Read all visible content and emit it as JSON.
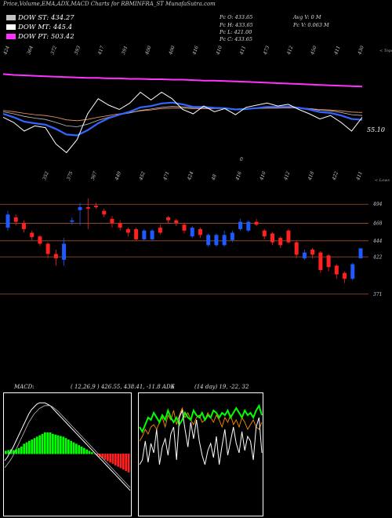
{
  "title": "Price,Volume,EMA,ADX,MACD Charts for RBMINFRA_ST MunafaSutra.com",
  "legend": [
    {
      "label": "DOW ST: 434.27",
      "color": "#c0c0c0"
    },
    {
      "label": "DOW MT: 445.4",
      "color": "#ffffff"
    },
    {
      "label": "DOW PT: 503.42",
      "color": "#ff33ff"
    }
  ],
  "info": {
    "pc_o": "Pc  O: 433.65",
    "pc_h": "Pc  H: 433.65",
    "pc_l": "Pc  L: 421.00",
    "pc_c": "Pc  C: 433.65",
    "avg_v": "Avg V: 0  M",
    "pc_v": "Pc  V: 0.063 M"
  },
  "colors": {
    "up": "#1e5aff",
    "down": "#ff2020",
    "grid": "#a0522d",
    "ema_long": "#ff33ff",
    "ema_blue": "#3366ff",
    "macd_hist": "#00ff00",
    "adx_green": "#00ff00",
    "adx_orange": "#ff8c00"
  },
  "chart_data": [
    {
      "type": "line",
      "name": "price-ema-panel",
      "top_labels": [
        "424",
        "364",
        "372",
        "393",
        "417",
        "391",
        "400",
        "400",
        "416",
        "410",
        "411",
        "473",
        "412",
        "450",
        "411",
        "430"
      ],
      "bottom_labels": [
        "352",
        "375",
        "367",
        "449",
        "452",
        "471",
        "424",
        "48",
        "416",
        "410",
        "412",
        "418",
        "422",
        "411"
      ],
      "mid_label": "0",
      "right_value": "55.10",
      "right_top": "< Tops",
      "right_bottom": "< Lows",
      "price_close": [
        412,
        400,
        380,
        392,
        388,
        350,
        330,
        360,
        420,
        455,
        440,
        430,
        445,
        470,
        452,
        470,
        455,
        430,
        420,
        438,
        425,
        432,
        418,
        435,
        440,
        445,
        438,
        442,
        430,
        420,
        408,
        416,
        400,
        380,
        412
      ],
      "ema_fast": [
        420,
        412,
        402,
        398,
        395,
        385,
        372,
        370,
        382,
        398,
        410,
        418,
        425,
        435,
        438,
        444,
        446,
        442,
        436,
        436,
        434,
        433,
        430,
        431,
        433,
        436,
        436,
        437,
        434,
        430,
        424,
        422,
        416,
        408,
        406
      ],
      "ema_mid": [
        425,
        420,
        414,
        410,
        407,
        400,
        392,
        390,
        396,
        405,
        412,
        418,
        422,
        428,
        431,
        435,
        437,
        436,
        434,
        434,
        433,
        433,
        431,
        432,
        433,
        435,
        435,
        436,
        434,
        432,
        428,
        427,
        423,
        418,
        416
      ],
      "ema_slow": [
        428,
        425,
        421,
        418,
        416,
        412,
        406,
        404,
        407,
        412,
        416,
        420,
        423,
        427,
        429,
        432,
        433,
        433,
        432,
        432,
        432,
        432,
        431,
        431,
        432,
        433,
        433,
        434,
        433,
        432,
        430,
        429,
        427,
        424,
        423
      ],
      "ema_long": [
        512,
        510,
        509,
        508,
        507,
        506,
        505,
        504,
        503,
        503,
        502,
        502,
        501,
        501,
        500,
        500,
        499,
        499,
        498,
        497,
        497,
        496,
        495,
        494,
        493,
        492,
        491,
        490,
        489,
        488,
        487,
        486,
        485,
        484,
        483
      ]
    },
    {
      "type": "candlestick",
      "name": "price-candles",
      "y_ticks": [
        "494",
        "468",
        "444",
        "422",
        "371"
      ],
      "ylim": [
        360,
        505
      ],
      "candles": [
        {
          "o": 462,
          "c": 480,
          "h": 485,
          "l": 458
        },
        {
          "o": 476,
          "c": 470,
          "h": 480,
          "l": 465
        },
        {
          "o": 468,
          "c": 460,
          "h": 472,
          "l": 455
        },
        {
          "o": 455,
          "c": 449,
          "h": 458,
          "l": 445
        },
        {
          "o": 450,
          "c": 440,
          "h": 452,
          "l": 437
        },
        {
          "o": 440,
          "c": 426,
          "h": 442,
          "l": 420
        },
        {
          "o": 426,
          "c": 420,
          "h": 432,
          "l": 410
        },
        {
          "o": 418,
          "c": 440,
          "h": 448,
          "l": 410
        },
        {
          "o": 470,
          "c": 472,
          "h": 476,
          "l": 466
        },
        {
          "o": 486,
          "c": 490,
          "h": 496,
          "l": 465
        },
        {
          "o": 490,
          "c": 488,
          "h": 502,
          "l": 460
        },
        {
          "o": 492,
          "c": 490,
          "h": 496,
          "l": 488
        },
        {
          "o": 485,
          "c": 480,
          "h": 488,
          "l": 476
        },
        {
          "o": 474,
          "c": 468,
          "h": 478,
          "l": 462
        },
        {
          "o": 468,
          "c": 462,
          "h": 472,
          "l": 458
        },
        {
          "o": 460,
          "c": 455,
          "h": 462,
          "l": 450
        },
        {
          "o": 460,
          "c": 446,
          "h": 462,
          "l": 444
        },
        {
          "o": 446,
          "c": 458,
          "h": 460,
          "l": 444
        },
        {
          "o": 446,
          "c": 458,
          "h": 460,
          "l": 444
        },
        {
          "o": 462,
          "c": 455,
          "h": 466,
          "l": 452
        },
        {
          "o": 476,
          "c": 472,
          "h": 478,
          "l": 468
        },
        {
          "o": 472,
          "c": 468,
          "h": 474,
          "l": 464
        },
        {
          "o": 466,
          "c": 458,
          "h": 468,
          "l": 454
        },
        {
          "o": 450,
          "c": 462,
          "h": 464,
          "l": 448
        },
        {
          "o": 460,
          "c": 452,
          "h": 462,
          "l": 448
        },
        {
          "o": 438,
          "c": 452,
          "h": 454,
          "l": 436
        },
        {
          "o": 438,
          "c": 452,
          "h": 454,
          "l": 436
        },
        {
          "o": 438,
          "c": 452,
          "h": 458,
          "l": 436
        },
        {
          "o": 445,
          "c": 455,
          "h": 458,
          "l": 442
        },
        {
          "o": 460,
          "c": 470,
          "h": 474,
          "l": 458
        },
        {
          "o": 458,
          "c": 470,
          "h": 472,
          "l": 456
        },
        {
          "o": 470,
          "c": 466,
          "h": 474,
          "l": 464
        },
        {
          "o": 458,
          "c": 450,
          "h": 460,
          "l": 446
        },
        {
          "o": 454,
          "c": 442,
          "h": 456,
          "l": 438
        },
        {
          "o": 448,
          "c": 438,
          "h": 450,
          "l": 434
        },
        {
          "o": 458,
          "c": 442,
          "h": 460,
          "l": 440
        },
        {
          "o": 442,
          "c": 425,
          "h": 444,
          "l": 420
        },
        {
          "o": 420,
          "c": 428,
          "h": 432,
          "l": 418
        },
        {
          "o": 432,
          "c": 425,
          "h": 434,
          "l": 420
        },
        {
          "o": 428,
          "c": 404,
          "h": 430,
          "l": 400
        },
        {
          "o": 424,
          "c": 408,
          "h": 426,
          "l": 402
        },
        {
          "o": 410,
          "c": 398,
          "h": 412,
          "l": 392
        },
        {
          "o": 400,
          "c": 392,
          "h": 402,
          "l": 386
        },
        {
          "o": 392,
          "c": 412,
          "h": 414,
          "l": 390
        },
        {
          "o": 420,
          "c": 433.65,
          "h": 433.65,
          "l": 421
        }
      ]
    },
    {
      "type": "bar",
      "name": "macd-panel",
      "label": "MACD:",
      "params": "( 12,26,9 ) 426.55, 438.41, -11.8 ADX",
      "histogram": [
        4,
        5,
        6,
        5,
        6,
        8,
        10,
        14,
        16,
        18,
        20,
        22,
        24,
        26,
        28,
        30,
        30,
        30,
        28,
        27,
        26,
        25,
        24,
        22,
        20,
        18,
        16,
        14,
        12,
        10,
        8,
        6,
        4,
        2,
        0,
        -2,
        -4,
        -6,
        -8,
        -10,
        -12,
        -14,
        -16,
        -18,
        -20,
        -22,
        -24,
        -26
      ],
      "macd_line": [
        -10,
        -5,
        2,
        8,
        16,
        24,
        32,
        40,
        48,
        56,
        62,
        66,
        70,
        72,
        72,
        72,
        70,
        68,
        64,
        60,
        56,
        52,
        48,
        44,
        40,
        36,
        32,
        28,
        24,
        20,
        16,
        12,
        8,
        4,
        0,
        -4,
        -8,
        -12,
        -16,
        -20,
        -24,
        -28,
        -32,
        -36,
        -40,
        -44,
        -48,
        -52
      ],
      "signal_line": [
        -20,
        -15,
        -10,
        -4,
        4,
        12,
        20,
        28,
        36,
        44,
        50,
        56,
        60,
        64,
        66,
        68,
        68,
        68,
        66,
        63,
        60,
        56,
        52,
        48,
        44,
        40,
        36,
        32,
        28,
        24,
        20,
        16,
        12,
        8,
        4,
        0,
        -4,
        -8,
        -12,
        -16,
        -20,
        -24,
        -28,
        -32,
        -36,
        -40,
        -44,
        -48
      ]
    },
    {
      "type": "line",
      "name": "adx-panel",
      "label": "6",
      "params": "(14  day) 19,  -22,  32",
      "adx_white": [
        40,
        44,
        60,
        42,
        58,
        50,
        70,
        40,
        55,
        62,
        48,
        66,
        72,
        44,
        80,
        86,
        70,
        55,
        76,
        62,
        78,
        60,
        48,
        40,
        52,
        58,
        46,
        64,
        40,
        56,
        70,
        48,
        60,
        72,
        58,
        50,
        68,
        52,
        64,
        60,
        44,
        72,
        80,
        50
      ],
      "adx_green": [
        72,
        68,
        74,
        80,
        78,
        84,
        80,
        76,
        82,
        78,
        86,
        80,
        76,
        80,
        74,
        78,
        84,
        80,
        78,
        86,
        82,
        80,
        84,
        78,
        82,
        80,
        86,
        84,
        80,
        84,
        82,
        86,
        80,
        84,
        88,
        84,
        80,
        86,
        82,
        84,
        80,
        86,
        90,
        82
      ],
      "adx_orange": [
        60,
        64,
        70,
        66,
        72,
        74,
        70,
        76,
        80,
        72,
        82,
        78,
        86,
        74,
        82,
        88,
        80,
        84,
        78,
        74,
        80,
        82,
        76,
        78,
        84,
        80,
        76,
        82,
        78,
        72,
        80,
        76,
        82,
        74,
        78,
        72,
        80,
        76,
        70,
        74,
        78,
        72,
        70,
        76
      ]
    }
  ]
}
